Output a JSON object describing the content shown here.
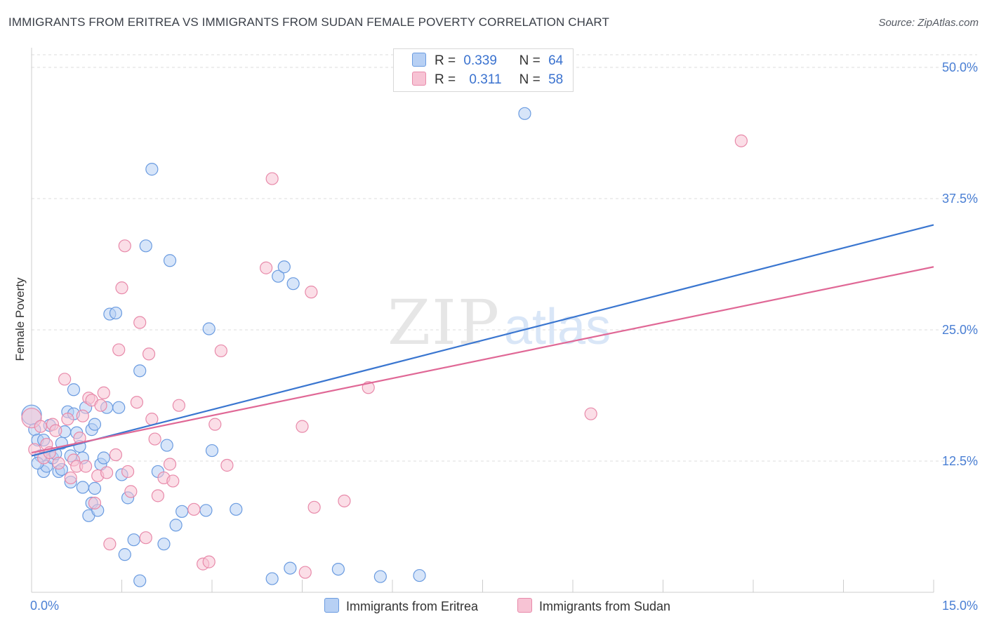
{
  "title": "IMMIGRANTS FROM ERITREA VS IMMIGRANTS FROM SUDAN FEMALE POVERTY CORRELATION CHART",
  "source": "Source: ZipAtlas.com",
  "watermark": {
    "zip": "ZIP",
    "atlas": "atlas"
  },
  "colors": {
    "blue_fill": "#b7d0f4",
    "blue_stroke": "#6a9be0",
    "blue_line": "#3a76d0",
    "pink_fill": "#f7c3d4",
    "pink_stroke": "#e88aaa",
    "pink_line": "#e06896",
    "tick_label": "#4a7fd4",
    "grid": "#dcdcdc"
  },
  "legend": {
    "rows": [
      {
        "r_label": "R =",
        "r_value": "0.339",
        "n_label": "N =",
        "n_value": "64",
        "color": "#b7d0f4"
      },
      {
        "r_label": "R =",
        "r_value": "0.311",
        "n_label": "N =",
        "n_value": "58",
        "color": "#f7c3d4"
      }
    ]
  },
  "bottom_legend": [
    {
      "label": "Immigrants from Eritrea",
      "color": "#b7d0f4"
    },
    {
      "label": "Immigrants from Sudan",
      "color": "#f7c3d4"
    }
  ],
  "chart_data": {
    "type": "scatter",
    "title": "IMMIGRANTS FROM ERITREA VS IMMIGRANTS FROM SUDAN FEMALE POVERTY CORRELATION CHART",
    "xlabel": "",
    "ylabel": "Female Poverty",
    "xlim": [
      0,
      15
    ],
    "ylim": [
      0,
      50
    ],
    "x_tick_labels": [
      "0.0%",
      "15.0%"
    ],
    "y_ticks": [
      12.5,
      25.0,
      37.5,
      50.0
    ],
    "y_tick_labels": [
      "12.5%",
      "25.0%",
      "37.5%",
      "50.0%"
    ],
    "grid": true,
    "series": [
      {
        "name": "Immigrants from Eritrea",
        "R": 0.339,
        "N": 64,
        "trend": {
          "x": [
            0,
            15
          ],
          "y": [
            13.0,
            35.0
          ]
        },
        "points": [
          [
            0.0,
            16.9
          ],
          [
            0.05,
            15.5
          ],
          [
            0.1,
            14.5
          ],
          [
            0.15,
            13.0
          ],
          [
            0.2,
            11.5
          ],
          [
            0.25,
            12.0
          ],
          [
            0.3,
            15.9
          ],
          [
            0.35,
            12.8
          ],
          [
            0.4,
            13.2
          ],
          [
            0.45,
            11.5
          ],
          [
            0.5,
            14.2
          ],
          [
            0.55,
            15.3
          ],
          [
            0.6,
            17.2
          ],
          [
            0.65,
            13.0
          ],
          [
            0.7,
            17.0
          ],
          [
            0.7,
            19.3
          ],
          [
            0.75,
            15.2
          ],
          [
            0.8,
            13.9
          ],
          [
            0.85,
            12.8
          ],
          [
            0.85,
            10.0
          ],
          [
            0.9,
            17.6
          ],
          [
            0.95,
            7.3
          ],
          [
            1.0,
            15.5
          ],
          [
            1.0,
            8.5
          ],
          [
            1.05,
            9.9
          ],
          [
            1.1,
            7.8
          ],
          [
            1.15,
            12.2
          ],
          [
            1.2,
            12.8
          ],
          [
            1.25,
            17.6
          ],
          [
            1.3,
            26.5
          ],
          [
            1.4,
            26.6
          ],
          [
            1.45,
            17.6
          ],
          [
            1.5,
            11.2
          ],
          [
            1.55,
            3.6
          ],
          [
            1.6,
            9.0
          ],
          [
            1.7,
            5.0
          ],
          [
            1.8,
            21.1
          ],
          [
            1.9,
            33.0
          ],
          [
            2.0,
            40.3
          ],
          [
            2.1,
            11.5
          ],
          [
            2.2,
            4.6
          ],
          [
            2.25,
            14.0
          ],
          [
            2.3,
            31.6
          ],
          [
            2.4,
            6.4
          ],
          [
            2.5,
            7.7
          ],
          [
            2.9,
            7.8
          ],
          [
            2.95,
            25.1
          ],
          [
            3.0,
            13.5
          ],
          [
            3.4,
            7.9
          ],
          [
            4.0,
            1.3
          ],
          [
            4.1,
            30.1
          ],
          [
            4.2,
            31.0
          ],
          [
            4.3,
            2.3
          ],
          [
            4.35,
            29.4
          ],
          [
            5.1,
            2.2
          ],
          [
            5.8,
            1.5
          ],
          [
            6.45,
            1.6
          ],
          [
            8.2,
            45.6
          ],
          [
            1.8,
            1.1
          ],
          [
            0.2,
            14.5
          ],
          [
            0.5,
            11.7
          ],
          [
            1.05,
            16.0
          ],
          [
            0.65,
            10.5
          ],
          [
            0.1,
            12.3
          ]
        ]
      },
      {
        "name": "Immigrants from Sudan",
        "R": 0.311,
        "N": 58,
        "trend": {
          "x": [
            0,
            15
          ],
          "y": [
            13.3,
            31.0
          ]
        },
        "points": [
          [
            0.0,
            16.6
          ],
          [
            0.05,
            13.6
          ],
          [
            0.15,
            15.8
          ],
          [
            0.2,
            12.8
          ],
          [
            0.25,
            14.1
          ],
          [
            0.3,
            13.3
          ],
          [
            0.35,
            16.0
          ],
          [
            0.4,
            15.4
          ],
          [
            0.45,
            12.3
          ],
          [
            0.55,
            20.3
          ],
          [
            0.6,
            16.5
          ],
          [
            0.65,
            10.9
          ],
          [
            0.7,
            12.6
          ],
          [
            0.75,
            12.0
          ],
          [
            0.8,
            14.7
          ],
          [
            0.85,
            16.8
          ],
          [
            0.9,
            12.0
          ],
          [
            0.95,
            18.5
          ],
          [
            1.0,
            18.3
          ],
          [
            1.05,
            8.5
          ],
          [
            1.1,
            11.1
          ],
          [
            1.15,
            17.8
          ],
          [
            1.2,
            19.0
          ],
          [
            1.25,
            11.4
          ],
          [
            1.3,
            4.6
          ],
          [
            1.4,
            13.1
          ],
          [
            1.45,
            23.1
          ],
          [
            1.5,
            29.0
          ],
          [
            1.55,
            33.0
          ],
          [
            1.6,
            11.5
          ],
          [
            1.65,
            9.6
          ],
          [
            1.75,
            18.1
          ],
          [
            1.8,
            25.7
          ],
          [
            1.9,
            5.2
          ],
          [
            1.95,
            22.7
          ],
          [
            2.0,
            16.5
          ],
          [
            2.05,
            14.6
          ],
          [
            2.1,
            9.2
          ],
          [
            2.2,
            10.9
          ],
          [
            2.3,
            12.2
          ],
          [
            2.35,
            10.6
          ],
          [
            2.45,
            17.8
          ],
          [
            2.7,
            7.9
          ],
          [
            2.85,
            2.7
          ],
          [
            2.95,
            2.9
          ],
          [
            3.05,
            16.0
          ],
          [
            3.15,
            23.0
          ],
          [
            3.25,
            12.1
          ],
          [
            3.9,
            30.9
          ],
          [
            4.0,
            39.4
          ],
          [
            4.5,
            15.8
          ],
          [
            4.55,
            1.9
          ],
          [
            4.65,
            28.6
          ],
          [
            4.7,
            8.1
          ],
          [
            5.2,
            8.7
          ],
          [
            5.6,
            19.5
          ],
          [
            9.3,
            17.0
          ],
          [
            11.8,
            43.0
          ]
        ]
      }
    ]
  }
}
